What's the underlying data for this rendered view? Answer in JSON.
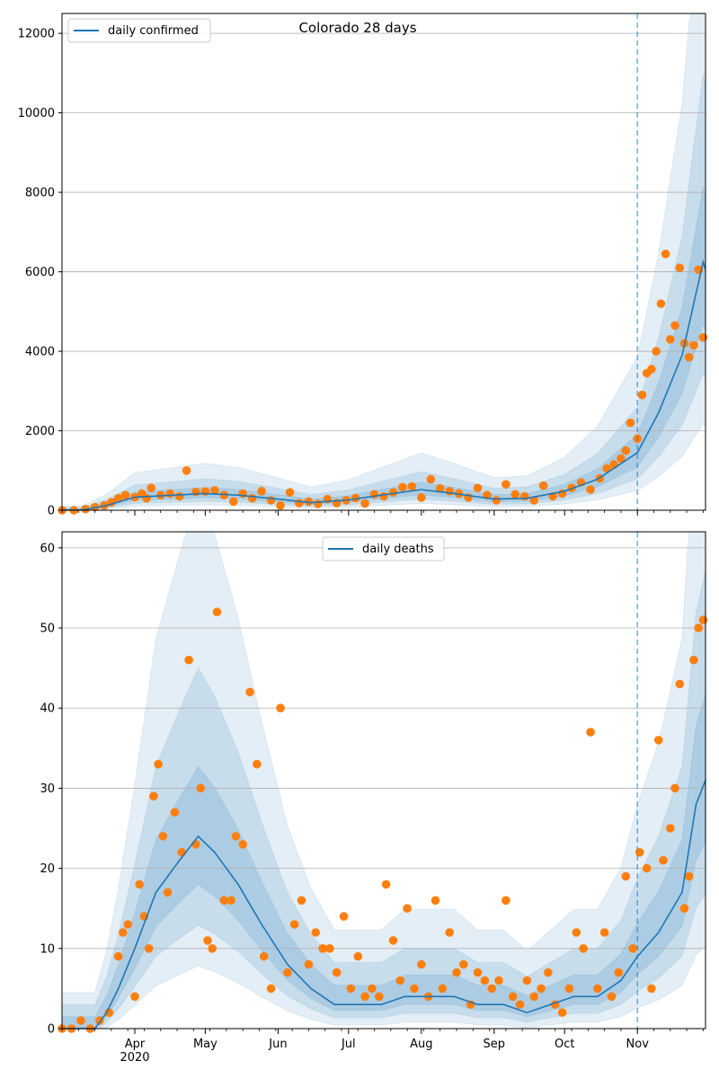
{
  "chart_data": [
    {
      "type": "line",
      "title": "Colorado 28 days",
      "xlabel": "",
      "ylabel": "",
      "x_range": [
        "2020-03-01",
        "2020-11-30"
      ],
      "ylim": [
        0,
        12500
      ],
      "yticks": [
        0,
        2000,
        4000,
        6000,
        8000,
        10000,
        12000
      ],
      "grid": "horizontal",
      "legend": {
        "position": "top-left",
        "entries": [
          "daily confirmed"
        ]
      },
      "vline_date": "2020-11-01",
      "series": [
        {
          "name": "daily confirmed",
          "kind": "line",
          "color": "#1f77b4",
          "x": [
            "2020-03-01",
            "2020-03-10",
            "2020-03-20",
            "2020-04-01",
            "2020-04-15",
            "2020-05-01",
            "2020-05-15",
            "2020-06-01",
            "2020-06-15",
            "2020-07-01",
            "2020-07-15",
            "2020-08-01",
            "2020-08-15",
            "2020-09-01",
            "2020-09-15",
            "2020-10-01",
            "2020-10-15",
            "2020-11-01",
            "2020-11-10",
            "2020-11-20",
            "2020-11-29",
            "2020-11-30"
          ],
          "y": [
            5,
            10,
            120,
            330,
            370,
            420,
            380,
            280,
            190,
            260,
            380,
            520,
            420,
            280,
            300,
            480,
            780,
            1450,
            2450,
            3900,
            6250,
            6050
          ]
        },
        {
          "name": "",
          "kind": "scatter",
          "color": "#ff7f0e",
          "x": [
            "2020-03-01",
            "2020-03-06",
            "2020-03-11",
            "2020-03-15",
            "2020-03-19",
            "2020-03-22",
            "2020-03-25",
            "2020-03-28",
            "2020-04-01",
            "2020-04-04",
            "2020-04-06",
            "2020-04-08",
            "2020-04-12",
            "2020-04-16",
            "2020-04-20",
            "2020-04-23",
            "2020-04-27",
            "2020-05-01",
            "2020-05-05",
            "2020-05-09",
            "2020-05-13",
            "2020-05-17",
            "2020-05-21",
            "2020-05-25",
            "2020-05-29",
            "2020-06-02",
            "2020-06-06",
            "2020-06-10",
            "2020-06-14",
            "2020-06-18",
            "2020-06-22",
            "2020-06-26",
            "2020-06-30",
            "2020-07-04",
            "2020-07-08",
            "2020-07-12",
            "2020-07-16",
            "2020-07-20",
            "2020-07-24",
            "2020-07-28",
            "2020-08-01",
            "2020-08-05",
            "2020-08-09",
            "2020-08-13",
            "2020-08-17",
            "2020-08-21",
            "2020-08-25",
            "2020-08-29",
            "2020-09-02",
            "2020-09-06",
            "2020-09-10",
            "2020-09-14",
            "2020-09-18",
            "2020-09-22",
            "2020-09-26",
            "2020-09-30",
            "2020-10-04",
            "2020-10-08",
            "2020-10-12",
            "2020-10-16",
            "2020-10-19",
            "2020-10-22",
            "2020-10-25",
            "2020-10-27",
            "2020-10-29",
            "2020-11-01",
            "2020-11-03",
            "2020-11-05",
            "2020-11-07",
            "2020-11-09",
            "2020-11-11",
            "2020-11-13",
            "2020-11-15",
            "2020-11-17",
            "2020-11-19",
            "2020-11-21",
            "2020-11-23",
            "2020-11-25",
            "2020-11-27",
            "2020-11-29"
          ],
          "y": [
            0,
            0,
            30,
            80,
            120,
            200,
            300,
            380,
            330,
            420,
            300,
            560,
            380,
            420,
            350,
            1000,
            460,
            470,
            500,
            380,
            220,
            420,
            300,
            480,
            250,
            120,
            450,
            180,
            220,
            160,
            280,
            180,
            250,
            310,
            170,
            400,
            350,
            450,
            580,
            600,
            320,
            780,
            550,
            480,
            420,
            320,
            560,
            380,
            250,
            650,
            400,
            350,
            250,
            620,
            350,
            420,
            560,
            700,
            520,
            800,
            1050,
            1150,
            1300,
            1500,
            2200,
            1800,
            2900,
            3450,
            3550,
            4000,
            5200,
            6450,
            4300,
            4650,
            6100,
            4200,
            3850,
            4150,
            6050,
            4350
          ]
        }
      ]
    },
    {
      "type": "line",
      "title": "",
      "xlabel": "",
      "ylabel": "",
      "x_range": [
        "2020-03-01",
        "2020-11-30"
      ],
      "ylim": [
        0,
        62
      ],
      "yticks": [
        0,
        10,
        20,
        30,
        40,
        50,
        60
      ],
      "xticks": [
        {
          "date": "2020-04-01",
          "label": "Apr",
          "sublabel": "2020"
        },
        {
          "date": "2020-05-01",
          "label": "May",
          "sublabel": ""
        },
        {
          "date": "2020-06-01",
          "label": "Jun",
          "sublabel": ""
        },
        {
          "date": "2020-07-01",
          "label": "Jul",
          "sublabel": ""
        },
        {
          "date": "2020-08-01",
          "label": "Aug",
          "sublabel": ""
        },
        {
          "date": "2020-09-01",
          "label": "Sep",
          "sublabel": ""
        },
        {
          "date": "2020-10-01",
          "label": "Oct",
          "sublabel": ""
        },
        {
          "date": "2020-11-01",
          "label": "Nov",
          "sublabel": ""
        }
      ],
      "grid": "horizontal",
      "legend": {
        "position": "top-center",
        "entries": [
          "daily deaths"
        ]
      },
      "vline_date": "2020-11-01",
      "series": [
        {
          "name": "daily deaths",
          "kind": "line",
          "color": "#1f77b4",
          "x": [
            "2020-03-01",
            "2020-03-15",
            "2020-03-20",
            "2020-03-25",
            "2020-04-01",
            "2020-04-10",
            "2020-04-20",
            "2020-04-28",
            "2020-05-05",
            "2020-05-15",
            "2020-05-25",
            "2020-06-05",
            "2020-06-15",
            "2020-06-25",
            "2020-07-01",
            "2020-07-15",
            "2020-07-25",
            "2020-08-05",
            "2020-08-15",
            "2020-08-25",
            "2020-09-05",
            "2020-09-15",
            "2020-09-25",
            "2020-10-05",
            "2020-10-15",
            "2020-10-25",
            "2020-11-01",
            "2020-11-10",
            "2020-11-20",
            "2020-11-26",
            "2020-11-30"
          ],
          "y": [
            0,
            0,
            2,
            5,
            10,
            17,
            21,
            24,
            22,
            18,
            13,
            8,
            5,
            3,
            3,
            3,
            4,
            4,
            4,
            3,
            3,
            2,
            3,
            4,
            4,
            6,
            9,
            12,
            17,
            28,
            31
          ]
        },
        {
          "name": "",
          "kind": "scatter",
          "color": "#ff7f0e",
          "x": [
            "2020-03-01",
            "2020-03-05",
            "2020-03-09",
            "2020-03-13",
            "2020-03-17",
            "2020-03-21",
            "2020-03-25",
            "2020-03-27",
            "2020-03-29",
            "2020-04-01",
            "2020-04-03",
            "2020-04-05",
            "2020-04-07",
            "2020-04-09",
            "2020-04-11",
            "2020-04-13",
            "2020-04-15",
            "2020-04-18",
            "2020-04-21",
            "2020-04-24",
            "2020-04-27",
            "2020-04-29",
            "2020-05-02",
            "2020-05-04",
            "2020-05-06",
            "2020-05-09",
            "2020-05-12",
            "2020-05-14",
            "2020-05-17",
            "2020-05-20",
            "2020-05-23",
            "2020-05-26",
            "2020-05-29",
            "2020-06-02",
            "2020-06-05",
            "2020-06-08",
            "2020-06-11",
            "2020-06-14",
            "2020-06-17",
            "2020-06-20",
            "2020-06-23",
            "2020-06-26",
            "2020-06-29",
            "2020-07-02",
            "2020-07-05",
            "2020-07-08",
            "2020-07-11",
            "2020-07-14",
            "2020-07-17",
            "2020-07-20",
            "2020-07-23",
            "2020-07-26",
            "2020-07-29",
            "2020-08-01",
            "2020-08-04",
            "2020-08-07",
            "2020-08-10",
            "2020-08-13",
            "2020-08-16",
            "2020-08-19",
            "2020-08-22",
            "2020-08-25",
            "2020-08-28",
            "2020-08-31",
            "2020-09-03",
            "2020-09-06",
            "2020-09-09",
            "2020-09-12",
            "2020-09-15",
            "2020-09-18",
            "2020-09-21",
            "2020-09-24",
            "2020-09-27",
            "2020-09-30",
            "2020-10-03",
            "2020-10-06",
            "2020-10-09",
            "2020-10-12",
            "2020-10-15",
            "2020-10-18",
            "2020-10-21",
            "2020-10-24",
            "2020-10-27",
            "2020-10-30",
            "2020-11-02",
            "2020-11-05",
            "2020-11-07",
            "2020-11-10",
            "2020-11-12",
            "2020-11-15",
            "2020-11-17",
            "2020-11-19",
            "2020-11-21",
            "2020-11-23",
            "2020-11-25",
            "2020-11-27",
            "2020-11-29"
          ],
          "y": [
            0,
            0,
            1,
            0,
            1,
            2,
            9,
            12,
            13,
            4,
            18,
            14,
            10,
            29,
            33,
            24,
            17,
            27,
            22,
            46,
            23,
            30,
            11,
            10,
            52,
            16,
            16,
            24,
            23,
            42,
            33,
            9,
            5,
            40,
            7,
            13,
            16,
            8,
            12,
            10,
            10,
            7,
            14,
            5,
            9,
            4,
            5,
            4,
            18,
            11,
            6,
            15,
            5,
            8,
            4,
            16,
            5,
            12,
            7,
            8,
            3,
            7,
            6,
            5,
            6,
            16,
            4,
            3,
            6,
            4,
            5,
            7,
            3,
            2,
            5,
            12,
            10,
            37,
            5,
            12,
            4,
            7,
            19,
            10,
            22,
            20,
            5,
            36,
            21,
            25,
            30,
            43,
            15,
            19,
            46,
            50,
            51
          ]
        }
      ]
    }
  ]
}
